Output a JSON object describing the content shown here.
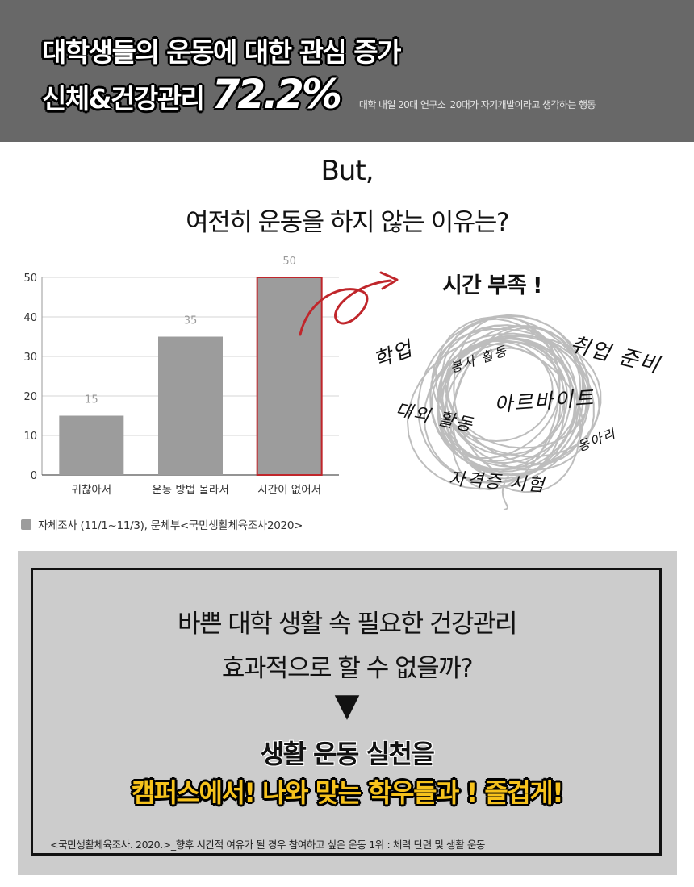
{
  "header": {
    "line1": "대학생들의 운동에 대한 관심 증가",
    "line2_text": "신체&건강관리",
    "line2_percent": "72.2%",
    "source": "대학 내일 20대 연구소_20대가 자기개발이라고 생각하는 행동",
    "bg_color": "#686868"
  },
  "subtitle": {
    "but": "But,",
    "question": "여전히 운동을 하지 않는 이유는?"
  },
  "chart_data": {
    "type": "bar",
    "categories": [
      "귀찮아서",
      "운동 방법 몰라서",
      "시간이 없어서"
    ],
    "values": [
      15,
      35,
      50
    ],
    "value_labels": [
      "15",
      "35",
      "50"
    ],
    "ylim": [
      0,
      50
    ],
    "yticks": [
      "0",
      "10",
      "20",
      "30",
      "40",
      "50"
    ],
    "grid": true,
    "bar_color": "#9c9c9c",
    "highlight_index": 2,
    "highlight_color": "#c0262b",
    "legend": "자체조사 (11/1~11/3),  문체부<국민생활체육조사2020>"
  },
  "annotation": {
    "title": "시간 부족 !",
    "words": [
      "학업",
      "봉사 활동",
      "취업 준비",
      "아르바이트",
      "대외 활동",
      "동아리",
      "자격증 시험"
    ]
  },
  "bottom": {
    "line1": "바쁜 대학 생활 속 필요한 건강관리",
    "line2": "효과적으로 할 수 없을까?",
    "arrow": "▼",
    "line3": "생활 운동 실천을",
    "line4": "캠퍼스에서! 나와 맞는 학우들과 ! 즐겁게!",
    "source": "<국민생활체육조사. 2020.>_향후 시간적 여유가 될 경우 참여하고 싶은 운동 1위 : 체력 단련 및 생활 운동",
    "accent_color": "#f6c21c",
    "panel_color": "#cccccc"
  }
}
